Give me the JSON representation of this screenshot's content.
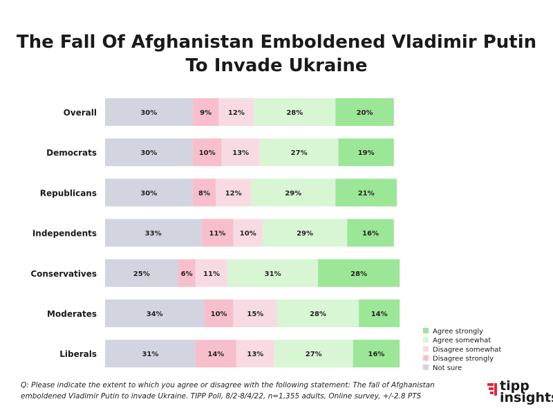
{
  "title_line1": "The Fall Of Afghanistan Emboldened Vladimir Putin",
  "title_line2": "To Invade Ukraine",
  "footnote_line1": "Q:  Please indicate the extent to which you agree or disagree with the following statement: The fall of Afghanistan",
  "footnote_line2": "emboldened Vladimir Putin to invade Ukraine. TIPP Poll, 8/2-8/4/22, n=1,355 adults, Online survey, +/-2.8 PTS",
  "logo": {
    "top": "tipp",
    "bottom": "insights",
    "accent": "#e0283c"
  },
  "chart_data": {
    "type": "bar",
    "orientation": "horizontal",
    "stacked": true,
    "value_unit": "%",
    "categories": [
      "Overall",
      "Democrats",
      "Republicans",
      "Independents",
      "Conservatives",
      "Moderates",
      "Liberals"
    ],
    "series": [
      {
        "name": "Not sure",
        "color": "#d2d5e0",
        "values": [
          30,
          30,
          30,
          33,
          25,
          34,
          31
        ]
      },
      {
        "name": "Disagree strongly",
        "color": "#f7bfcc",
        "values": [
          9,
          10,
          8,
          11,
          6,
          10,
          14
        ]
      },
      {
        "name": "Disagree somewhat",
        "color": "#f8dbe2",
        "values": [
          12,
          13,
          12,
          10,
          11,
          15,
          13
        ]
      },
      {
        "name": "Agree somewhat",
        "color": "#d8f5d4",
        "values": [
          28,
          27,
          29,
          29,
          31,
          28,
          27
        ]
      },
      {
        "name": "Agree strongly",
        "color": "#9ce697",
        "values": [
          20,
          19,
          21,
          16,
          28,
          14,
          16
        ]
      }
    ],
    "legend_order": [
      "Agree strongly",
      "Agree somewhat",
      "Disagree somewhat",
      "Disagree strongly",
      "Not sure"
    ],
    "legend_position": "bottom-right",
    "grid": false
  }
}
